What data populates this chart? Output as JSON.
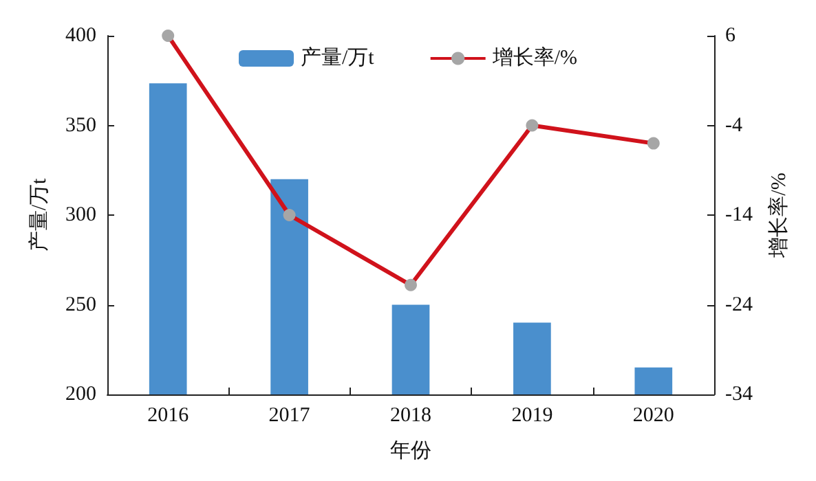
{
  "chart_data": {
    "type": "bar",
    "xlabel": "年份",
    "ylabel": "产量/万t",
    "y2label": "增长率/%",
    "categories": [
      "2016",
      "2017",
      "2018",
      "2019",
      "2020"
    ],
    "series": [
      {
        "name": "产量/万t",
        "color": "#4a8fcd",
        "values": [
          373.5,
          320,
          250,
          240,
          215
        ]
      },
      {
        "name": "增长率/%",
        "type": "line",
        "axis": "y2",
        "color": "#d0121b",
        "values": [
          6,
          -14,
          -21.8,
          -4,
          -6
        ]
      }
    ],
    "ylim": [
      200,
      400
    ],
    "yticks": [
      200,
      250,
      300,
      350,
      400
    ],
    "y2lim": [
      -34,
      6
    ],
    "y2ticks": [
      -34,
      -24,
      -14,
      -4,
      6
    ],
    "grid": false,
    "legend": "top",
    "marker": "circle"
  }
}
